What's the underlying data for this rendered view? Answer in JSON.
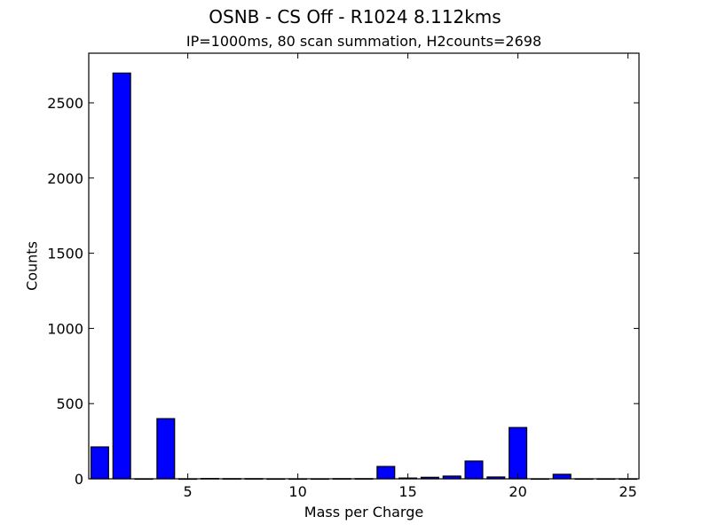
{
  "chart_data": {
    "type": "bar",
    "title": "OSNB - CS Off - R1024 8.112kms",
    "subtitle": "IP=1000ms, 80 scan summation, H2counts=2698",
    "xlabel": "Mass per Charge",
    "ylabel": "Counts",
    "xlim": [
      0.5,
      25.5
    ],
    "ylim": [
      0,
      2830
    ],
    "xticks": [
      5,
      10,
      15,
      20,
      25
    ],
    "yticks": [
      0,
      500,
      1000,
      1500,
      2000,
      2500
    ],
    "grid": false,
    "legend": null,
    "bar_color": "#0000ff",
    "bar_width": 0.8,
    "categories": [
      1,
      2,
      3,
      4,
      5,
      6,
      7,
      8,
      9,
      10,
      11,
      12,
      13,
      14,
      15,
      16,
      17,
      18,
      19,
      20,
      21,
      22,
      23,
      24,
      25
    ],
    "values": [
      212,
      2698,
      0,
      400,
      0,
      2,
      1,
      1,
      0,
      0,
      0,
      1,
      1,
      82,
      5,
      10,
      18,
      118,
      12,
      341,
      0,
      30,
      0,
      0,
      0
    ]
  }
}
